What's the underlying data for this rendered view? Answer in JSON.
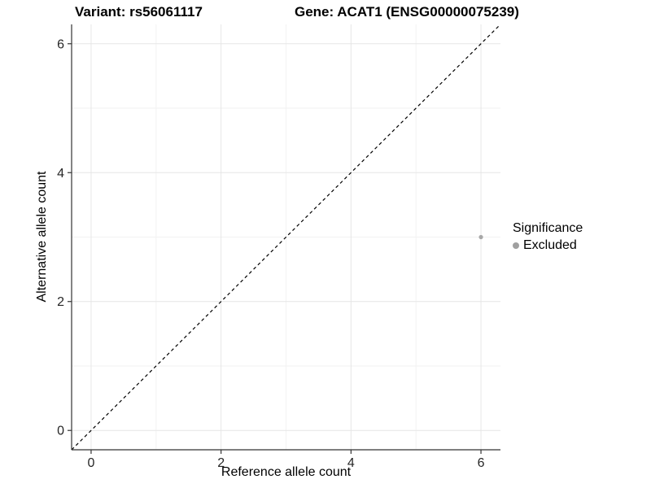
{
  "chart_data": {
    "type": "scatter",
    "titles": [
      "Variant: rs56061117",
      "Gene: ACAT1 (ENSG00000075239)"
    ],
    "xlabel": "Reference allele count",
    "ylabel": "Alternative allele count",
    "xlim": [
      -0.3,
      6.3
    ],
    "ylim": [
      -0.3,
      6.3
    ],
    "x_ticks": [
      0,
      2,
      4,
      6
    ],
    "y_ticks": [
      0,
      2,
      4,
      6
    ],
    "x_minor_ticks": [
      1,
      3,
      5
    ],
    "y_minor_ticks": [
      1,
      3,
      5
    ],
    "grid": "major+minor",
    "series": [
      {
        "name": "Excluded",
        "marker": "circle",
        "color": "#a8a8a8",
        "points": [
          {
            "x": 6,
            "y": 3
          }
        ]
      }
    ],
    "reference_line": {
      "kind": "identity",
      "from": [
        -0.3,
        -0.3
      ],
      "to": [
        6.3,
        6.3
      ],
      "style": "dashed",
      "color": "#000000"
    },
    "legend": {
      "position": "right",
      "title": "Significance",
      "items": [
        {
          "label": "Excluded",
          "color": "#a0a0a0",
          "marker": "circle"
        }
      ]
    },
    "colors": {
      "background": "#ffffff",
      "grid_major": "#e6e6e6",
      "grid_minor": "#f2f2f2",
      "axis_line": "#333333",
      "tick_mark": "#333333",
      "tick_text": "#262626"
    }
  }
}
